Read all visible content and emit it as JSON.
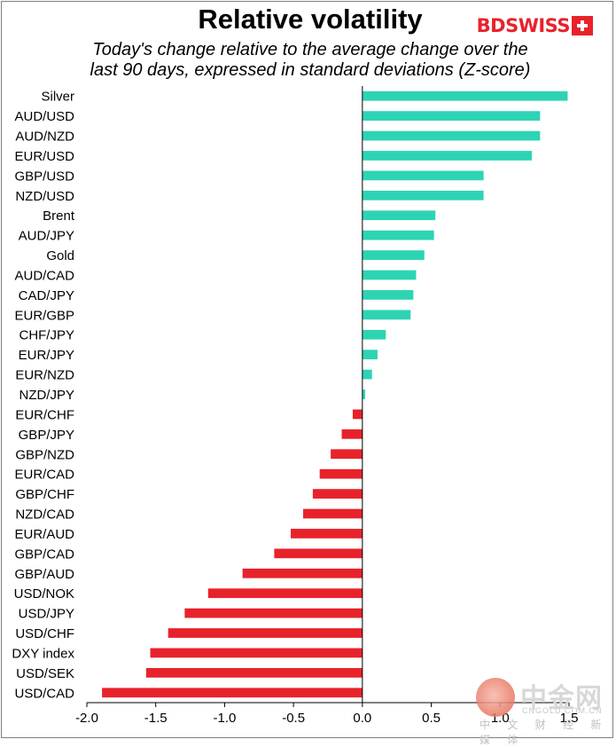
{
  "title": "Relative volatility",
  "subtitle_line1": "Today's change relative to the  average change over the",
  "subtitle_line2": "last 90 days, expressed in standard deviations (Z-score)",
  "brand": {
    "name": "BDSWISS",
    "icon": "swiss-cross-flag-icon"
  },
  "watermark": {
    "name": "中金网",
    "domain": "CNGOLD.COM.CN",
    "tagline": "中 文 财 经 新 媒 体",
    "icon": "cngold-logo-icon"
  },
  "colors": {
    "positive": "#2dd4b4",
    "negative": "#e8222b",
    "axis": "#000000"
  },
  "chart_data": {
    "type": "bar",
    "orientation": "horizontal",
    "categories": [
      "Silver",
      "AUD/USD",
      "AUD/NZD",
      "EUR/USD",
      "GBP/USD",
      "NZD/USD",
      "Brent",
      "AUD/JPY",
      "Gold",
      "AUD/CAD",
      "CAD/JPY",
      "EUR/GBP",
      "CHF/JPY",
      "EUR/JPY",
      "EUR/NZD",
      "NZD/JPY",
      "EUR/CHF",
      "GBP/JPY",
      "GBP/NZD",
      "EUR/CAD",
      "GBP/CHF",
      "NZD/CAD",
      "EUR/AUD",
      "GBP/CAD",
      "GBP/AUD",
      "USD/NOK",
      "USD/JPY",
      "USD/CHF",
      "DXY index",
      "USD/SEK",
      "USD/CAD"
    ],
    "values": [
      1.49,
      1.29,
      1.29,
      1.23,
      0.88,
      0.88,
      0.53,
      0.52,
      0.45,
      0.39,
      0.37,
      0.35,
      0.17,
      0.11,
      0.07,
      0.02,
      -0.07,
      -0.15,
      -0.23,
      -0.31,
      -0.36,
      -0.43,
      -0.52,
      -0.64,
      -0.87,
      -1.12,
      -1.29,
      -1.41,
      -1.54,
      -1.57,
      -1.89
    ],
    "xlim": [
      -2.0,
      1.5
    ],
    "xticks": [
      "-2.0",
      "-1.5",
      "-1.0",
      "-0.5",
      "0.0",
      "0.5",
      "1.0",
      "1.5"
    ],
    "grid": false,
    "legend": "none"
  }
}
